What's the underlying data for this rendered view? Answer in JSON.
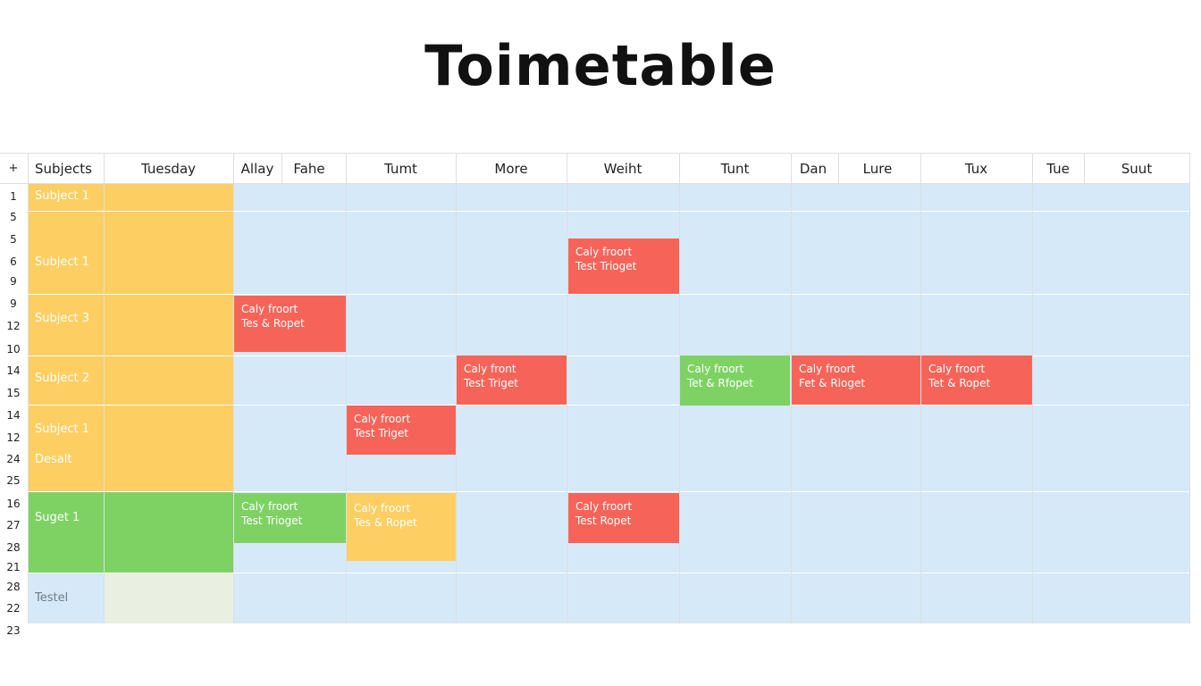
{
  "title": "Toimetable",
  "colors": {
    "grid_bg": "#d6e9f8",
    "yellow": "#fdcf62",
    "green": "#7ed264",
    "red": "#f66459",
    "pale": "#e9efe1",
    "header_bg": "#ffffff"
  },
  "corner_label": "+",
  "header": {
    "subjects": "Subjects",
    "columns": [
      "Tuesday",
      "Allay",
      "Fahe",
      "Tumt",
      "More",
      "Weiht",
      "Tunt",
      "Dan",
      "Lure",
      "Tux",
      "Tue",
      "Suut"
    ]
  },
  "row_numbers": [
    "1",
    "5",
    "5",
    "6",
    "9",
    "9",
    "12",
    "10",
    "14",
    "15",
    "14",
    "12",
    "24",
    "25",
    "16",
    "27",
    "28",
    "21",
    "28",
    "22",
    "23"
  ],
  "subjects": [
    "Subject 1",
    "Subject 1",
    "Subject 3",
    "Subject 2",
    "Subject 1",
    "Desalt",
    "Suget 1",
    "Testel"
  ],
  "events": [
    {
      "line1": "Caly froort",
      "line2": "Test Trioget",
      "color": "red"
    },
    {
      "line1": "Caly froort",
      "line2": "Tes & Ropet",
      "color": "red"
    },
    {
      "line1": "Caly front",
      "line2": "Test Triget",
      "color": "red"
    },
    {
      "line1": "Caly froort",
      "line2": "Tet & Rfopet",
      "color": "green"
    },
    {
      "line1": "Caly froort",
      "line2": "Fet & Rloget",
      "color": "red"
    },
    {
      "line1": "Caly froort",
      "line2": "Tet & Ropet",
      "color": "red"
    },
    {
      "line1": "Caly froort",
      "line2": "Test Triget",
      "color": "red"
    },
    {
      "line1": "Caly froort",
      "line2": "Test Trioget",
      "color": "green"
    },
    {
      "line1": "Caly froort",
      "line2": "Tes & Ropet",
      "color": "yellow"
    },
    {
      "line1": "Caly froort",
      "line2": "Test Ropet",
      "color": "red"
    }
  ]
}
